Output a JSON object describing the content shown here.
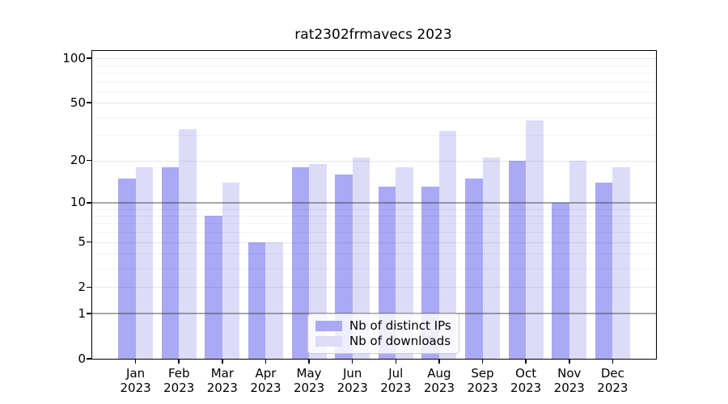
{
  "title": "rat2302frmavecs 2023",
  "chart_data": {
    "type": "bar",
    "title": "rat2302frmavecs 2023",
    "categories": [
      "Jan 2023",
      "Feb 2023",
      "Mar 2023",
      "Apr 2023",
      "May 2023",
      "Jun 2023",
      "Jul 2023",
      "Aug 2023",
      "Sep 2023",
      "Oct 2023",
      "Nov 2023",
      "Dec 2023"
    ],
    "month_names": [
      "Jan",
      "Feb",
      "Mar",
      "Apr",
      "May",
      "Jun",
      "Jul",
      "Aug",
      "Sep",
      "Oct",
      "Nov",
      "Dec"
    ],
    "year_label": "2023",
    "series": [
      {
        "name": "Nb of distinct IPs",
        "color": "#a9a9f4",
        "values": [
          15,
          18,
          8,
          5,
          18,
          16,
          13,
          13,
          15,
          20,
          10,
          14
        ]
      },
      {
        "name": "Nb of downloads",
        "color": "#dcdcf9",
        "values": [
          18,
          33,
          14,
          5,
          19,
          21,
          18,
          32,
          21,
          38,
          20,
          18
        ]
      }
    ],
    "xlabel": "",
    "ylabel": "",
    "yscale": "log1p",
    "ylim": [
      0,
      113
    ],
    "yticks": [
      100,
      50,
      20,
      10,
      5,
      2,
      1,
      0
    ],
    "gridlines": {
      "dark": [
        1,
        10
      ],
      "light": [
        2,
        5,
        20,
        50,
        100
      ],
      "minor": [
        3,
        4,
        6,
        7,
        8,
        9,
        30,
        40,
        60,
        70,
        80,
        90
      ]
    },
    "grid": "on",
    "legend_position": "bottom-center",
    "legend_entries": [
      "Nb of distinct IPs",
      "Nb of downloads"
    ]
  },
  "colors": {
    "background": "#ffffff",
    "axis": "#000000",
    "bar_distinct_ips": "#a9a9f4",
    "bar_downloads": "#dcdcf9",
    "legend_border": "#cccccc"
  }
}
